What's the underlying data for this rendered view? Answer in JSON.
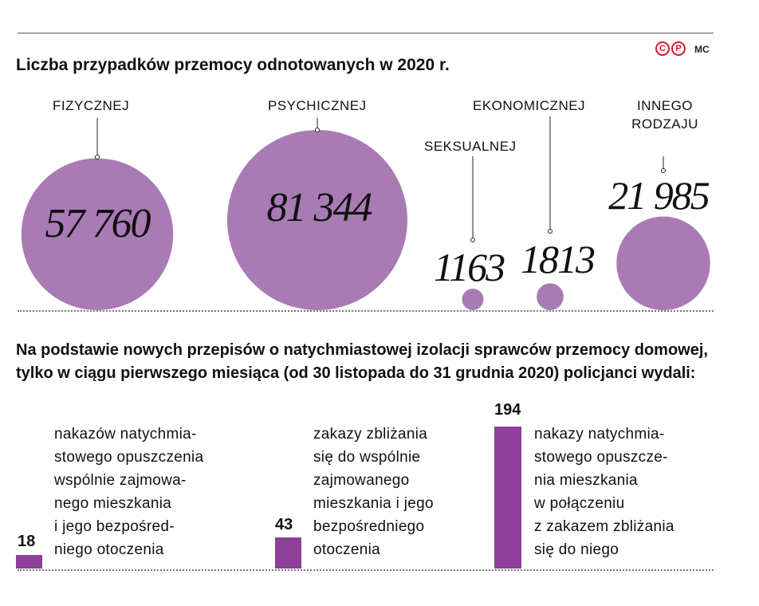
{
  "title": "Liczba przypadków przemocy odnotowanych w 2020 r.",
  "author": "MC",
  "logo": [
    "C",
    "P"
  ],
  "chart_data": [
    {
      "type": "bubble",
      "title": "Liczba przypadków przemocy odnotowanych w 2020 r.",
      "color": "#a97bb5",
      "categories": [
        "FIZYCZNEJ",
        "PSYCHICZNEJ",
        "SEKSUALNEJ",
        "EKONOMICZNEJ",
        "INNEGO RODZAJU"
      ],
      "values": [
        57760,
        81344,
        1163,
        1813,
        21985
      ],
      "value_labels": [
        "57 760",
        "81 344",
        "1163",
        "1813",
        "21 985"
      ]
    },
    {
      "type": "bar",
      "color": "#8e3f99",
      "title": "Na podstawie nowych przepisów o natychmiastowej izolacji sprawców przemocy domowej, tylko w ciągu pierwszego miesiąca (od 30 listopada do 31 grudnia 2020) policjanci wydali:",
      "categories": [
        "nakazów natychmia-\nstowego opuszczenia\nwspólnie zajmowa-\nnego mieszkania\ni jego bezpośred-\nniego otoczenia",
        "zakazy zbliżania\nsię do wspólnie\nzajmowanego\nmieszkania i jego\nbezpośredniego\notoczenia",
        "nakazy natychmia-\nstowego opuszcze-\nnia mieszkania\nw połączeniu\nz zakazem zbliżania\nsię do niego"
      ],
      "values": [
        18,
        43,
        194
      ]
    }
  ]
}
